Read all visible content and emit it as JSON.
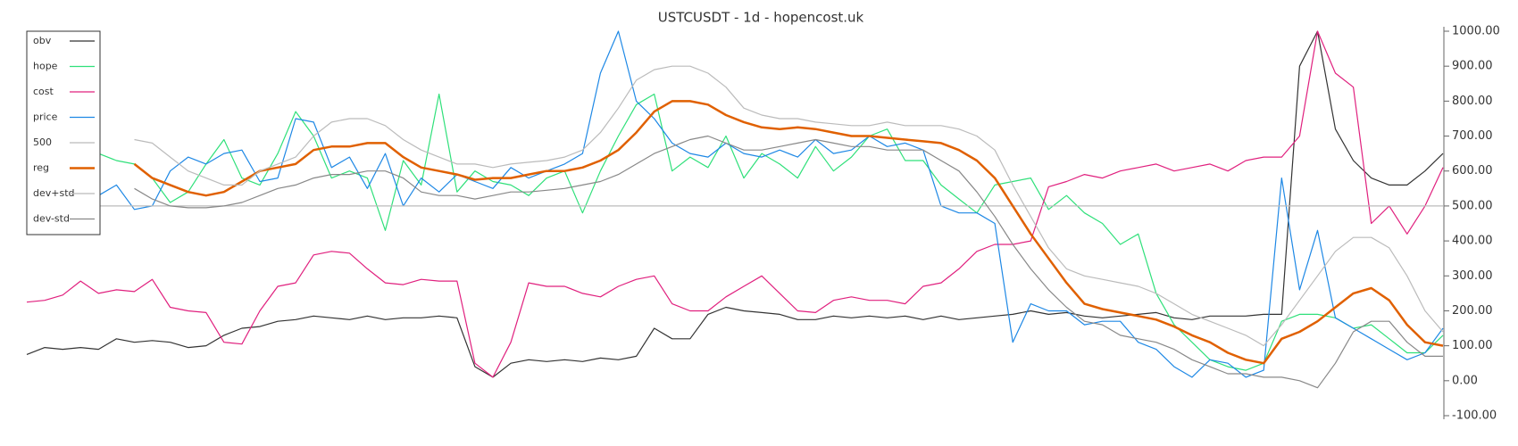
{
  "chart_data": {
    "type": "line",
    "title": "USTCUSDT - 1d - hopencost.uk",
    "ylim": [
      -100,
      1000
    ],
    "yticks": [
      {
        "value": -100,
        "label": "-100.00"
      },
      {
        "value": 0,
        "label": "0.00"
      },
      {
        "value": 100,
        "label": "100.00"
      },
      {
        "value": 200,
        "label": "200.00"
      },
      {
        "value": 300,
        "label": "300.00"
      },
      {
        "value": 400,
        "label": "400.00"
      },
      {
        "value": 500,
        "label": "500.00"
      },
      {
        "value": 600,
        "label": "600.00"
      },
      {
        "value": 700,
        "label": "700.00"
      },
      {
        "value": 800,
        "label": "800.00"
      },
      {
        "value": 900,
        "label": "900.00"
      },
      {
        "value": 1000,
        "label": "1000.00"
      }
    ],
    "legend": "upper left",
    "series": [
      {
        "name": "obv",
        "color": "#333333",
        "values": [
          75,
          95,
          90,
          95,
          90,
          120,
          110,
          115,
          110,
          95,
          100,
          130,
          150,
          155,
          170,
          175,
          185,
          180,
          175,
          185,
          175,
          180,
          180,
          185,
          180,
          40,
          10,
          50,
          60,
          55,
          60,
          55,
          65,
          60,
          70,
          150,
          120,
          120,
          190,
          210,
          200,
          195,
          190,
          175,
          175,
          185,
          180,
          185,
          180,
          185,
          175,
          185,
          175,
          180,
          185,
          190,
          200,
          190,
          195,
          185,
          180,
          185,
          190,
          195,
          180,
          175,
          185,
          185,
          185,
          190,
          190,
          900,
          1000,
          720,
          630,
          580,
          560,
          560,
          600,
          650
        ]
      },
      {
        "name": "hope",
        "color": "#2fe07a",
        "values": [
          null,
          null,
          null,
          null,
          650,
          630,
          620,
          580,
          510,
          540,
          620,
          690,
          580,
          560,
          650,
          770,
          700,
          580,
          600,
          580,
          430,
          630,
          560,
          820,
          540,
          600,
          570,
          560,
          530,
          580,
          600,
          480,
          600,
          700,
          790,
          820,
          600,
          640,
          610,
          700,
          580,
          650,
          620,
          580,
          670,
          600,
          640,
          700,
          720,
          630,
          630,
          560,
          520,
          480,
          560,
          570,
          580,
          490,
          530,
          480,
          450,
          390,
          420,
          250,
          160,
          110,
          60,
          40,
          30,
          50,
          170,
          190,
          190,
          180,
          150,
          160,
          120,
          80,
          80,
          130
        ]
      },
      {
        "name": "cost",
        "color": "#e0207e",
        "values": [
          225,
          230,
          245,
          285,
          250,
          260,
          255,
          290,
          210,
          200,
          195,
          110,
          105,
          200,
          270,
          280,
          360,
          370,
          365,
          320,
          280,
          275,
          290,
          285,
          285,
          50,
          10,
          110,
          280,
          270,
          270,
          250,
          240,
          270,
          290,
          300,
          220,
          200,
          200,
          240,
          270,
          300,
          250,
          200,
          195,
          230,
          240,
          230,
          230,
          220,
          270,
          280,
          320,
          370,
          390,
          390,
          400,
          555,
          570,
          590,
          580,
          600,
          610,
          620,
          600,
          610,
          620,
          600,
          630,
          640,
          640,
          700,
          1000,
          880,
          840,
          450,
          500,
          420,
          500,
          610
        ]
      },
      {
        "name": "price",
        "color": "#1e88e5",
        "values": [
          null,
          null,
          null,
          null,
          530,
          560,
          490,
          500,
          600,
          640,
          620,
          650,
          660,
          570,
          580,
          750,
          740,
          610,
          640,
          550,
          650,
          500,
          580,
          540,
          590,
          570,
          550,
          610,
          580,
          600,
          620,
          650,
          880,
          1000,
          800,
          750,
          680,
          650,
          640,
          680,
          650,
          640,
          660,
          640,
          690,
          650,
          660,
          700,
          670,
          680,
          660,
          500,
          480,
          480,
          450,
          110,
          220,
          200,
          200,
          160,
          170,
          170,
          110,
          90,
          40,
          10,
          60,
          50,
          10,
          30,
          580,
          260,
          430,
          180,
          150,
          120,
          90,
          60,
          80,
          150
        ]
      },
      {
        "name": "500",
        "color": "#bbbbbb",
        "hline": 500
      },
      {
        "name": "reg",
        "color": "#e06000",
        "width": 2.5,
        "values": [
          null,
          null,
          null,
          null,
          null,
          null,
          620,
          580,
          560,
          540,
          530,
          540,
          570,
          600,
          610,
          620,
          660,
          670,
          670,
          680,
          680,
          640,
          610,
          600,
          590,
          575,
          580,
          580,
          590,
          600,
          600,
          610,
          630,
          660,
          710,
          770,
          800,
          800,
          790,
          760,
          740,
          725,
          720,
          725,
          720,
          710,
          700,
          700,
          695,
          690,
          685,
          680,
          660,
          630,
          580,
          500,
          420,
          350,
          280,
          220,
          205,
          195,
          185,
          175,
          155,
          130,
          110,
          80,
          60,
          50,
          120,
          140,
          170,
          210,
          250,
          265,
          230,
          160,
          110,
          100
        ]
      },
      {
        "name": "dev+std",
        "color": "#bbbbbb",
        "values": [
          null,
          null,
          null,
          null,
          null,
          null,
          690,
          680,
          640,
          600,
          580,
          560,
          560,
          600,
          620,
          640,
          700,
          740,
          750,
          750,
          730,
          690,
          660,
          640,
          620,
          620,
          610,
          620,
          625,
          630,
          640,
          660,
          710,
          780,
          860,
          890,
          900,
          900,
          880,
          840,
          780,
          760,
          750,
          750,
          740,
          735,
          730,
          730,
          740,
          730,
          730,
          730,
          720,
          700,
          660,
          560,
          470,
          380,
          320,
          300,
          290,
          280,
          270,
          250,
          220,
          190,
          170,
          150,
          130,
          100,
          160,
          230,
          300,
          370,
          410,
          410,
          380,
          300,
          200,
          140
        ]
      },
      {
        "name": "dev-std",
        "color": "#888888",
        "values": [
          null,
          null,
          null,
          null,
          null,
          null,
          550,
          520,
          500,
          495,
          495,
          500,
          510,
          530,
          550,
          560,
          580,
          590,
          590,
          600,
          600,
          580,
          540,
          530,
          530,
          520,
          530,
          540,
          540,
          545,
          550,
          560,
          570,
          590,
          620,
          650,
          670,
          690,
          700,
          680,
          660,
          660,
          670,
          680,
          690,
          680,
          670,
          670,
          660,
          660,
          660,
          630,
          600,
          540,
          470,
          390,
          320,
          260,
          210,
          170,
          160,
          130,
          120,
          110,
          90,
          60,
          40,
          20,
          20,
          10,
          10,
          0,
          -20,
          50,
          140,
          170,
          170,
          110,
          70,
          70
        ]
      }
    ]
  }
}
